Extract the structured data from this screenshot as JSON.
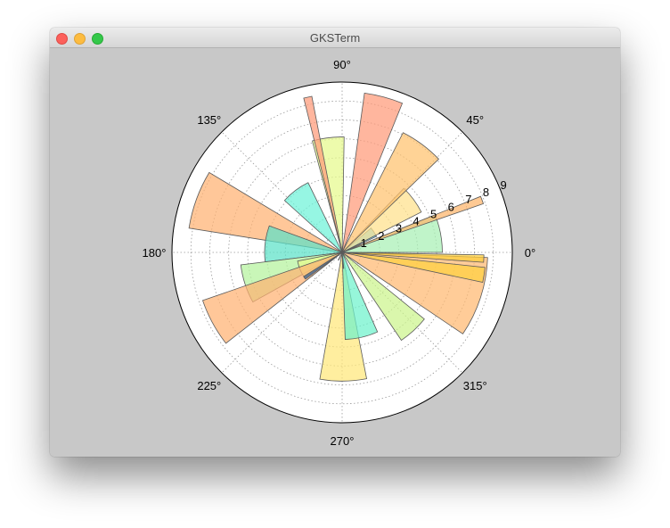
{
  "window": {
    "title": "GKSTerm"
  },
  "chart_data": {
    "type": "polar-bar",
    "title": "",
    "angle_ticks": [
      {
        "deg": 0,
        "label": "0°"
      },
      {
        "deg": 45,
        "label": "45°"
      },
      {
        "deg": 90,
        "label": "90°"
      },
      {
        "deg": 135,
        "label": "135°"
      },
      {
        "deg": 180,
        "label": "180°"
      },
      {
        "deg": 225,
        "label": "225°"
      },
      {
        "deg": 270,
        "label": "270°"
      },
      {
        "deg": 315,
        "label": "315°"
      }
    ],
    "radial_ticks": [
      {
        "r": 1,
        "label": "1"
      },
      {
        "r": 2,
        "label": "2"
      },
      {
        "r": 3,
        "label": "3"
      },
      {
        "r": 4,
        "label": "4"
      },
      {
        "r": 5,
        "label": "5"
      },
      {
        "r": 6,
        "label": "6"
      },
      {
        "r": 7,
        "label": "7"
      },
      {
        "r": 8,
        "label": "8"
      },
      {
        "r": 9,
        "label": "9"
      }
    ],
    "rlim": [
      0,
      9
    ],
    "radial_label_angle_deg": 22.5,
    "grid": true,
    "bars": [
      {
        "theta0": 0,
        "theta1": 22,
        "r": 5.3,
        "color": "#a8f0b4"
      },
      {
        "theta0": 19,
        "theta1": 22,
        "r": 7.9,
        "color": "#fdb46a"
      },
      {
        "theta0": 25,
        "theta1": 40,
        "r": 2.0,
        "color": "#4fc4f0"
      },
      {
        "theta0": 27,
        "theta1": 46,
        "r": 4.7,
        "color": "#ffe08a"
      },
      {
        "theta0": 44,
        "theta1": 63,
        "r": 7.1,
        "color": "#ffc26e"
      },
      {
        "theta0": 68,
        "theta1": 82,
        "r": 8.5,
        "color": "#ff9a78"
      },
      {
        "theta0": 89,
        "theta1": 105,
        "r": 6.1,
        "color": "#e6f98c"
      },
      {
        "theta0": 101,
        "theta1": 104,
        "r": 8.4,
        "color": "#ff9a78"
      },
      {
        "theta0": 116,
        "theta1": 138,
        "r": 4.1,
        "color": "#6ef2d8"
      },
      {
        "theta0": 149,
        "theta1": 171,
        "r": 8.2,
        "color": "#ffb272"
      },
      {
        "theta0": 160,
        "theta1": 187,
        "r": 4.1,
        "color": "#5ce2c8"
      },
      {
        "theta0": 187,
        "theta1": 209,
        "r": 5.4,
        "color": "#b4f29c"
      },
      {
        "theta0": 191,
        "theta1": 214,
        "r": 2.4,
        "color": "#e6f98c"
      },
      {
        "theta0": 199,
        "theta1": 218,
        "r": 7.8,
        "color": "#ffb272"
      },
      {
        "theta0": 212,
        "theta1": 216,
        "r": 2.4,
        "color": "#30649a"
      },
      {
        "theta0": 243,
        "theta1": 246,
        "r": 0.45,
        "color": "#30649a"
      },
      {
        "theta0": 260,
        "theta1": 281,
        "r": 6.8,
        "color": "#ffe87a"
      },
      {
        "theta0": 272,
        "theta1": 294,
        "r": 4.6,
        "color": "#6ef2cc"
      },
      {
        "theta0": 273,
        "theta1": 276,
        "r": 0.85,
        "color": "#30649a"
      },
      {
        "theta0": 304,
        "theta1": 321,
        "r": 5.6,
        "color": "#ccf48c"
      },
      {
        "theta0": 326,
        "theta1": 358,
        "r": 7.7,
        "color": "#ffb870"
      },
      {
        "theta0": 348,
        "theta1": 354,
        "r": 7.6,
        "color": "#ffd040"
      },
      {
        "theta0": 356,
        "theta1": 359,
        "r": 7.5,
        "color": "#ffcf3a"
      }
    ]
  }
}
